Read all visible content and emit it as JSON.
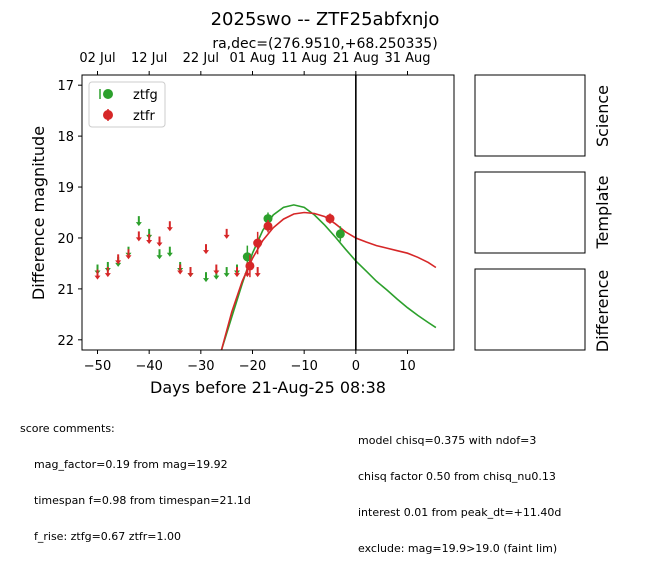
{
  "chart_data": {
    "type": "scatter",
    "title": "2025swo -- ZTF25abfxnjo",
    "subtitle": "ra,dec=(276.9510,+68.250335)",
    "xlabel": "Days before 21-Aug-25 08:38",
    "ylabel": "Difference magnitude",
    "xlim": [
      -53,
      19
    ],
    "ylim": [
      22.2,
      16.8
    ],
    "y_inverted": true,
    "x_ticks": [
      -50,
      -40,
      -30,
      -20,
      -10,
      0,
      10
    ],
    "x_tick_labels": [
      "−50",
      "−40",
      "−30",
      "−20",
      "−10",
      "0",
      "10"
    ],
    "y_ticks": [
      17,
      18,
      19,
      20,
      21,
      22
    ],
    "y_tick_labels": [
      "17",
      "18",
      "19",
      "20",
      "21",
      "22"
    ],
    "top_axis_ticks": [
      {
        "x": -50,
        "label": "02 Jul"
      },
      {
        "x": -40,
        "label": "12 Jul"
      },
      {
        "x": -30,
        "label": "22 Jul"
      },
      {
        "x": -20,
        "label": "01 Aug"
      },
      {
        "x": -10,
        "label": "11 Aug"
      },
      {
        "x": 0,
        "label": "21 Aug"
      },
      {
        "x": 10,
        "label": "31 Aug"
      }
    ],
    "vline_x": 0,
    "legend_position": "top-left",
    "grid": false,
    "series": [
      {
        "name": "ztfg",
        "color": "#2ca02c",
        "detections": [
          {
            "x": -21,
            "y": 20.37,
            "err": 0.22
          },
          {
            "x": -17,
            "y": 19.62,
            "err": 0.12
          },
          {
            "x": -3,
            "y": 19.92,
            "err": 0.15
          }
        ],
        "upper_limits": [
          {
            "x": -50,
            "y": 20.6
          },
          {
            "x": -48,
            "y": 20.55
          },
          {
            "x": -46,
            "y": 20.45
          },
          {
            "x": -44,
            "y": 20.25
          },
          {
            "x": -42,
            "y": 19.65
          },
          {
            "x": -40,
            "y": 19.9
          },
          {
            "x": -38,
            "y": 20.3
          },
          {
            "x": -36,
            "y": 20.25
          },
          {
            "x": -34,
            "y": 20.55
          },
          {
            "x": -32,
            "y": 20.65
          },
          {
            "x": -29,
            "y": 20.75
          },
          {
            "x": -27,
            "y": 20.7
          },
          {
            "x": -25,
            "y": 20.65
          },
          {
            "x": -23,
            "y": 20.6
          }
        ],
        "model": [
          [
            -26,
            22.2
          ],
          [
            -24,
            21.55
          ],
          [
            -22,
            20.9
          ],
          [
            -20,
            20.3
          ],
          [
            -18,
            19.85
          ],
          [
            -16,
            19.55
          ],
          [
            -14,
            19.4
          ],
          [
            -12,
            19.35
          ],
          [
            -10,
            19.4
          ],
          [
            -8,
            19.55
          ],
          [
            -6,
            19.75
          ],
          [
            -4,
            19.98
          ],
          [
            -2,
            20.22
          ],
          [
            0,
            20.45
          ],
          [
            2,
            20.65
          ],
          [
            4,
            20.85
          ],
          [
            6,
            21.02
          ],
          [
            8,
            21.2
          ],
          [
            10,
            21.37
          ],
          [
            12,
            21.52
          ],
          [
            14,
            21.66
          ],
          [
            15.5,
            21.76
          ]
        ]
      },
      {
        "name": "ztfr",
        "color": "#d62728",
        "detections": [
          {
            "x": -20.5,
            "y": 20.55,
            "err": 0.22
          },
          {
            "x": -19,
            "y": 20.1,
            "err": 0.22
          },
          {
            "x": -17,
            "y": 19.77,
            "err": 0.12
          },
          {
            "x": -5,
            "y": 19.62,
            "err": 0.1
          }
        ],
        "upper_limits": [
          {
            "x": -50,
            "y": 20.7
          },
          {
            "x": -48,
            "y": 20.65
          },
          {
            "x": -46,
            "y": 20.4
          },
          {
            "x": -44,
            "y": 20.3
          },
          {
            "x": -42,
            "y": 19.95
          },
          {
            "x": -40,
            "y": 20.0
          },
          {
            "x": -38,
            "y": 20.05
          },
          {
            "x": -36,
            "y": 19.75
          },
          {
            "x": -34,
            "y": 20.6
          },
          {
            "x": -32,
            "y": 20.65
          },
          {
            "x": -29,
            "y": 20.2
          },
          {
            "x": -27,
            "y": 20.6
          },
          {
            "x": -25,
            "y": 19.9
          },
          {
            "x": -23,
            "y": 20.65
          },
          {
            "x": -21,
            "y": 20.65
          },
          {
            "x": -19,
            "y": 20.65
          }
        ],
        "model": [
          [
            -26,
            22.2
          ],
          [
            -24,
            21.45
          ],
          [
            -22,
            20.85
          ],
          [
            -20,
            20.4
          ],
          [
            -18,
            20.05
          ],
          [
            -16,
            19.8
          ],
          [
            -14,
            19.63
          ],
          [
            -12,
            19.53
          ],
          [
            -10,
            19.5
          ],
          [
            -8,
            19.52
          ],
          [
            -6,
            19.58
          ],
          [
            -4,
            19.72
          ],
          [
            -2,
            19.88
          ],
          [
            0,
            20.0
          ],
          [
            2,
            20.08
          ],
          [
            4,
            20.15
          ],
          [
            6,
            20.2
          ],
          [
            8,
            20.25
          ],
          [
            10,
            20.3
          ],
          [
            12,
            20.38
          ],
          [
            14,
            20.48
          ],
          [
            15.5,
            20.58
          ]
        ]
      }
    ]
  },
  "side_panels": [
    {
      "label": "Science"
    },
    {
      "label": "Template"
    },
    {
      "label": "Difference"
    }
  ],
  "score_comments": {
    "header": "score comments:",
    "lines": [
      "mag_factor=0.19 from mag=19.92",
      "timespan f=0.98 from timespan=21.1d",
      "f_rise: ztfg=0.67 ztfr=1.00"
    ]
  },
  "model_comments": {
    "lines": [
      "model chisq=0.375 with ndof=3",
      "chisq factor 0.50 from chisq_nu0.13",
      "interest 0.01 from peak_dt=+11.40d",
      "exclude: mag=19.9>19.0 (faint lim)"
    ]
  }
}
